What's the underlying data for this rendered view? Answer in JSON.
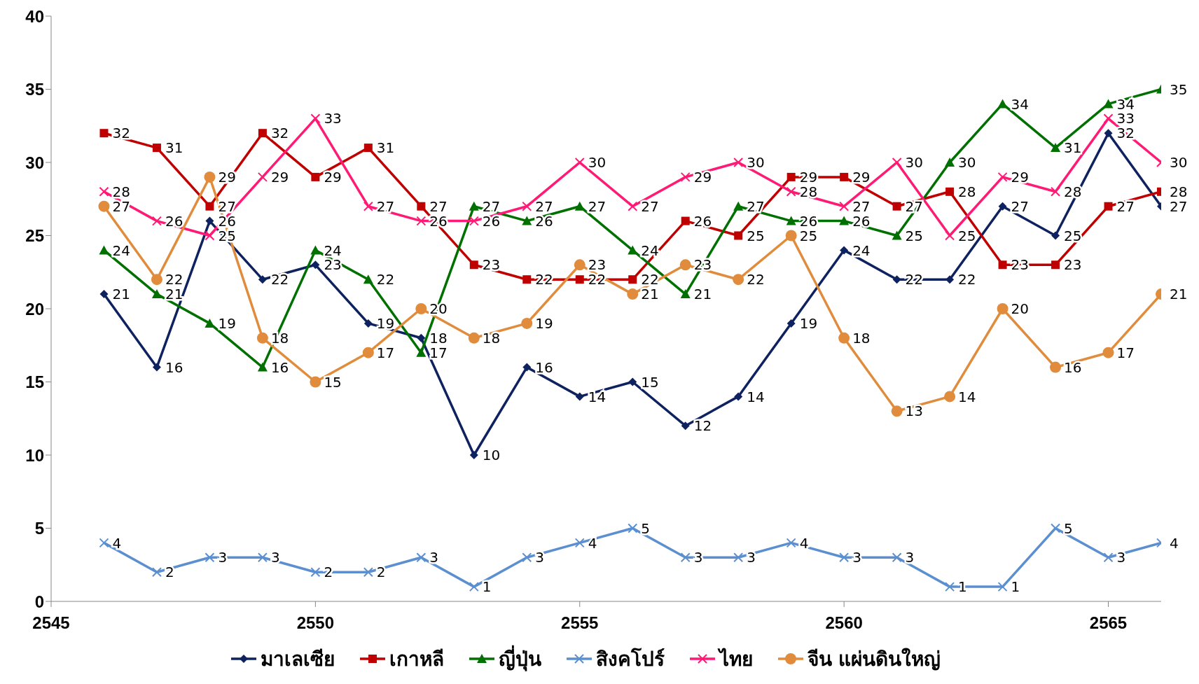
{
  "chart_data": {
    "type": "line",
    "x": [
      2546,
      2547,
      2548,
      2549,
      2550,
      2551,
      2552,
      2553,
      2554,
      2555,
      2556,
      2557,
      2558,
      2559,
      2560,
      2561,
      2562,
      2563,
      2564,
      2565,
      2566
    ],
    "xlim": [
      2545,
      2566
    ],
    "xticks": [
      2545,
      2550,
      2555,
      2560,
      2565
    ],
    "ylim": [
      0,
      40
    ],
    "yticks": [
      0,
      5,
      10,
      15,
      20,
      25,
      30,
      35,
      40
    ],
    "grid": false,
    "legend": "bottom",
    "data_labels": true,
    "series": [
      {
        "name": "มาเลเซีย",
        "color": "#0f2260",
        "marker": "diamond",
        "values": [
          21,
          16,
          26,
          22,
          23,
          19,
          18,
          10,
          16,
          14,
          15,
          12,
          14,
          19,
          24,
          22,
          22,
          27,
          25,
          32,
          27
        ]
      },
      {
        "name": "เกาหลี",
        "color": "#c00000",
        "marker": "square",
        "values": [
          32,
          31,
          27,
          32,
          29,
          31,
          27,
          23,
          22,
          22,
          22,
          26,
          25,
          29,
          29,
          27,
          28,
          23,
          23,
          27,
          28
        ]
      },
      {
        "name": "ญี่ปุ่น",
        "color": "#007000",
        "marker": "triangle",
        "values": [
          24,
          21,
          19,
          16,
          24,
          22,
          17,
          27,
          26,
          27,
          24,
          21,
          27,
          26,
          26,
          25,
          30,
          34,
          31,
          34,
          35
        ]
      },
      {
        "name": "สิงคโปร์",
        "color": "#5b8fd0",
        "marker": "cross",
        "values": [
          4,
          2,
          3,
          3,
          2,
          2,
          3,
          1,
          3,
          4,
          5,
          3,
          3,
          4,
          3,
          3,
          1,
          1,
          5,
          3,
          4
        ]
      },
      {
        "name": "ไทย",
        "color": "#ff1a75",
        "marker": "cross",
        "values": [
          28,
          26,
          25,
          29,
          33,
          27,
          26,
          26,
          27,
          30,
          27,
          29,
          30,
          28,
          27,
          30,
          25,
          29,
          28,
          33,
          30
        ]
      },
      {
        "name": "จีน แผ่นดินใหญ่",
        "color": "#e08c3c",
        "marker": "circle",
        "values": [
          27,
          22,
          29,
          18,
          15,
          17,
          20,
          18,
          19,
          23,
          21,
          23,
          22,
          25,
          18,
          13,
          14,
          20,
          16,
          17,
          21
        ]
      }
    ]
  }
}
